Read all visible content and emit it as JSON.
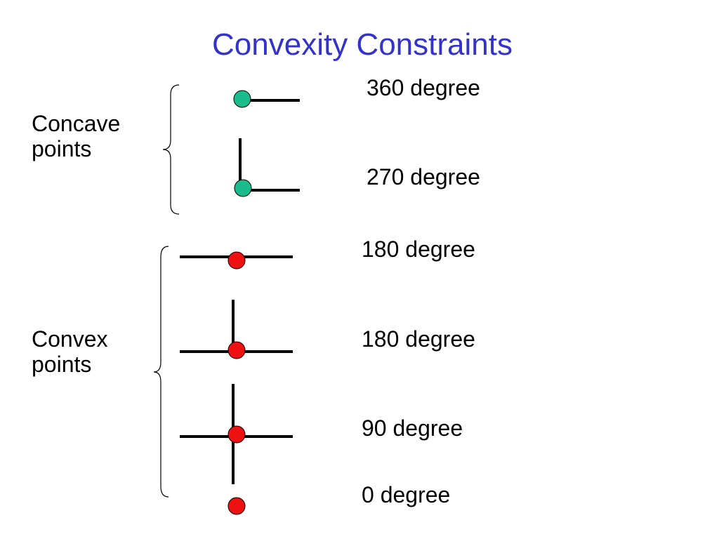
{
  "title": "Convexity Constraints",
  "groups": [
    {
      "label": "Concave points"
    },
    {
      "label": "Convex points"
    }
  ],
  "items": [
    {
      "label": "360 degree"
    },
    {
      "label": "270 degree"
    },
    {
      "label": "180 degree"
    },
    {
      "label": "180 degree"
    },
    {
      "label": "90 degree"
    },
    {
      "label": "0 degree"
    }
  ]
}
